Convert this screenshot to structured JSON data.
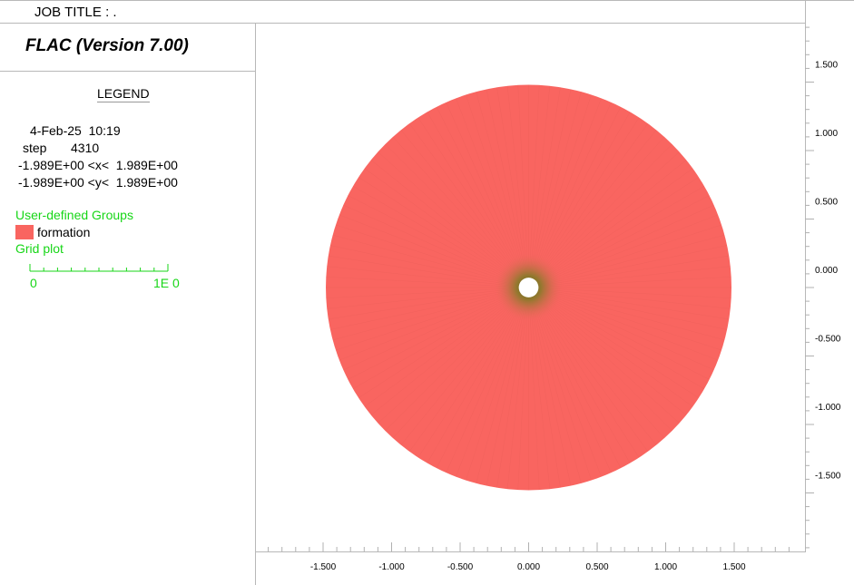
{
  "header": {
    "job_title": "JOB TITLE : .",
    "app_title": "FLAC (Version 7.00)"
  },
  "legend": {
    "heading": "LEGEND",
    "date_time": "4-Feb-25  10:19",
    "step_label": "step",
    "step_value": "4310",
    "x_range": "-1.989E+00 <x<  1.989E+00",
    "y_range": "-1.989E+00 <y<  1.989E+00",
    "groups_title": "User-defined Groups",
    "group_name": "formation",
    "grid_plot_title": "Grid plot",
    "scale_min": "0",
    "scale_max": "1E  0"
  },
  "colors": {
    "formation": "#f96560",
    "legend_green": "#17d617",
    "hole_grid": "#6b7a1e"
  },
  "chart_data": {
    "type": "grid-plot",
    "group": "formation",
    "x_ticks": [
      "-1.500",
      "-1.000",
      "-0.500",
      "0.000",
      "0.500",
      "1.000",
      "1.500"
    ],
    "y_ticks": [
      "1.500",
      "1.000",
      "0.500",
      "0.000",
      "-0.500",
      "-1.000",
      "-1.500"
    ],
    "x_tick_values": [
      -1.5,
      -1.0,
      -0.5,
      0.0,
      0.5,
      1.0,
      1.5
    ],
    "y_tick_values": [
      1.5,
      1.0,
      0.5,
      0.0,
      -0.5,
      -1.0,
      -1.5
    ],
    "xlim": [
      -1.989,
      1.989
    ],
    "ylim": [
      -1.989,
      1.989
    ],
    "outer_radius": 1.48,
    "hole_radius": 0.072
  }
}
